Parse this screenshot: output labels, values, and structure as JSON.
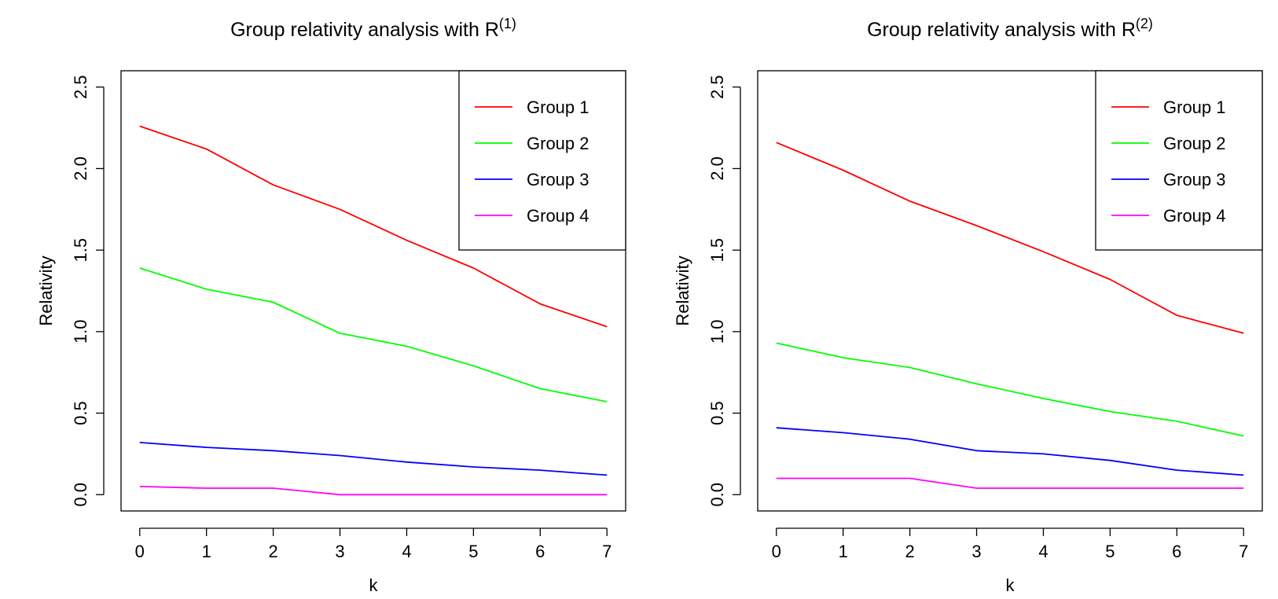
{
  "chart_data": [
    {
      "type": "line",
      "title": "Group relativity analysis with R",
      "title_superscript": "(1)",
      "xlabel": "k",
      "ylabel": "Relativity",
      "x": [
        0,
        1,
        2,
        3,
        4,
        5,
        6,
        7
      ],
      "x_ticks": [
        "0",
        "1",
        "2",
        "3",
        "4",
        "5",
        "6",
        "7"
      ],
      "y_ticks": [
        "0.0",
        "0.5",
        "1.0",
        "1.5",
        "2.0",
        "2.5"
      ],
      "xlim": [
        -0.28,
        7.28
      ],
      "ylim": [
        -0.1,
        2.6
      ],
      "grid": false,
      "legend_position": "top-right",
      "series": [
        {
          "name": "Group 1",
          "color": "#ff0000",
          "values": [
            2.26,
            2.12,
            1.9,
            1.75,
            1.56,
            1.39,
            1.17,
            1.03
          ]
        },
        {
          "name": "Group 2",
          "color": "#00ff00",
          "values": [
            1.39,
            1.26,
            1.18,
            0.99,
            0.91,
            0.79,
            0.65,
            0.57
          ]
        },
        {
          "name": "Group 3",
          "color": "#0000ff",
          "values": [
            0.32,
            0.29,
            0.27,
            0.24,
            0.2,
            0.17,
            0.15,
            0.12
          ]
        },
        {
          "name": "Group 4",
          "color": "#ff00ff",
          "values": [
            0.05,
            0.04,
            0.04,
            0.0,
            0.0,
            0.0,
            0.0,
            0.0
          ]
        }
      ]
    },
    {
      "type": "line",
      "title": "Group relativity analysis with R",
      "title_superscript": "(2)",
      "xlabel": "k",
      "ylabel": "Relativity",
      "x": [
        0,
        1,
        2,
        3,
        4,
        5,
        6,
        7
      ],
      "x_ticks": [
        "0",
        "1",
        "2",
        "3",
        "4",
        "5",
        "6",
        "7"
      ],
      "y_ticks": [
        "0.0",
        "0.5",
        "1.0",
        "1.5",
        "2.0",
        "2.5"
      ],
      "xlim": [
        -0.28,
        7.28
      ],
      "ylim": [
        -0.1,
        2.6
      ],
      "grid": false,
      "legend_position": "top-right",
      "series": [
        {
          "name": "Group 1",
          "color": "#ff0000",
          "values": [
            2.16,
            1.99,
            1.8,
            1.65,
            1.49,
            1.32,
            1.1,
            0.99
          ]
        },
        {
          "name": "Group 2",
          "color": "#00ff00",
          "values": [
            0.93,
            0.84,
            0.78,
            0.68,
            0.59,
            0.51,
            0.45,
            0.36
          ]
        },
        {
          "name": "Group 3",
          "color": "#0000ff",
          "values": [
            0.41,
            0.38,
            0.34,
            0.27,
            0.25,
            0.21,
            0.15,
            0.12
          ]
        },
        {
          "name": "Group 4",
          "color": "#ff00ff",
          "values": [
            0.1,
            0.1,
            0.1,
            0.04,
            0.04,
            0.04,
            0.04,
            0.04
          ]
        }
      ]
    }
  ]
}
